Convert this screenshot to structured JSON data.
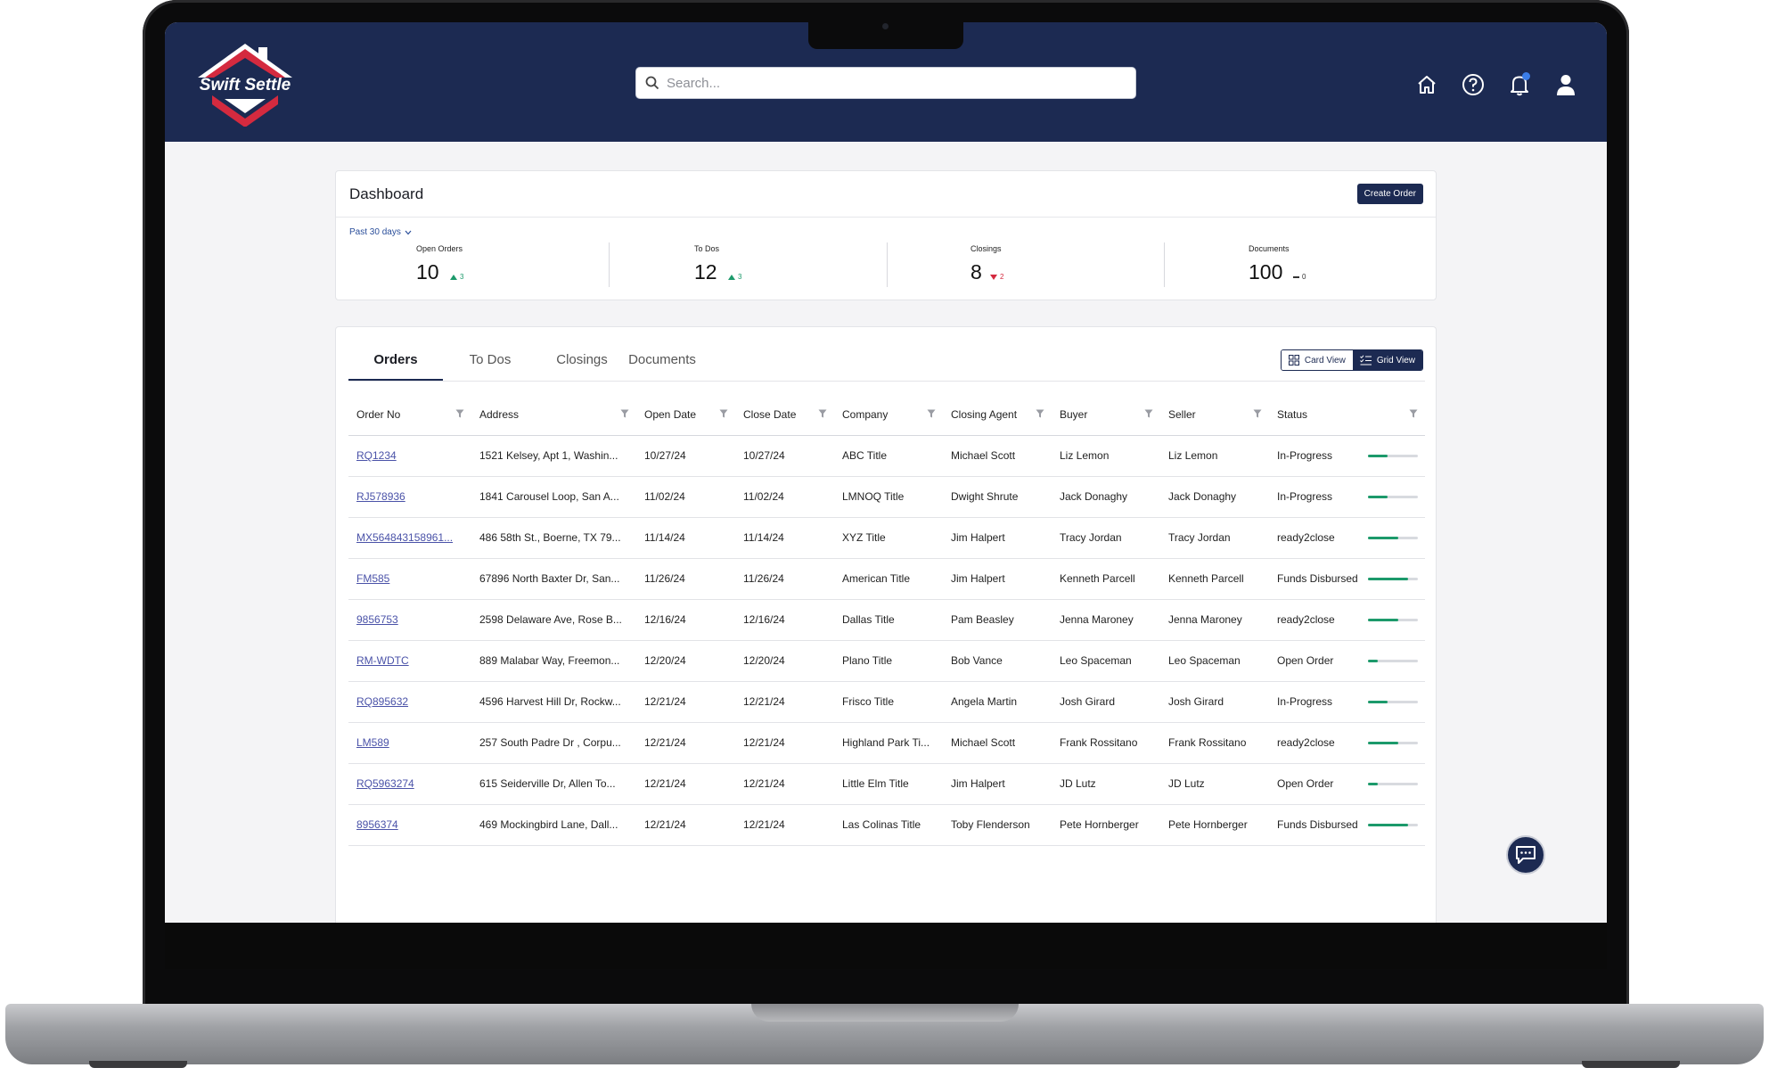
{
  "header": {
    "logo_text": "Swift Settle",
    "search_placeholder": "Search...",
    "icons": [
      "home-icon",
      "help-icon",
      "bell-icon",
      "user-icon"
    ]
  },
  "dashboard": {
    "title": "Dashboard",
    "create_label": "Create Order",
    "range_label": "Past 30 days",
    "stats": [
      {
        "label": "Open Orders",
        "value": "10",
        "delta": "3",
        "direction": "up"
      },
      {
        "label": "To Dos",
        "value": "12",
        "delta": "3",
        "direction": "up"
      },
      {
        "label": "Closings",
        "value": "8",
        "delta": "2",
        "direction": "down"
      },
      {
        "label": "Documents",
        "value": "100",
        "delta": "0",
        "direction": "flat"
      }
    ]
  },
  "tabs": [
    "Orders",
    "To Dos",
    "Closings",
    "Documents"
  ],
  "views": {
    "card": "Card View",
    "grid": "Grid View"
  },
  "table": {
    "columns": [
      "Order No",
      "Address",
      "Open Date",
      "Close Date",
      "Company",
      "Closing Agent",
      "Buyer",
      "Seller",
      "Status"
    ],
    "rows": [
      {
        "order": "RQ1234",
        "address": "1521 Kelsey, Apt 1, Washin...",
        "open": "10/27/24",
        "close": "10/27/24",
        "company": "ABC Title",
        "agent": "Michael Scott",
        "buyer": "Liz Lemon",
        "seller": "Liz Lemon",
        "status": "In-Progress",
        "progress": 0.4
      },
      {
        "order": "RJ578936",
        "address": "1841 Carousel Loop, San A...",
        "open": "11/02/24",
        "close": "11/02/24",
        "company": "LMNOQ Title",
        "agent": "Dwight Shrute",
        "buyer": "Jack Donaghy",
        "seller": "Jack Donaghy",
        "status": "In-Progress",
        "progress": 0.4
      },
      {
        "order": "MX564843158961...",
        "address": "486 58th St., Boerne, TX 79...",
        "open": "11/14/24",
        "close": "11/14/24",
        "company": "XYZ Title",
        "agent": "Jim Halpert",
        "buyer": "Tracy Jordan",
        "seller": "Tracy Jordan",
        "status": "ready2close",
        "progress": 0.6
      },
      {
        "order": "FM585",
        "address": "67896 North Baxter Dr, San...",
        "open": "11/26/24",
        "close": "11/26/24",
        "company": "American Title",
        "agent": "Jim Halpert",
        "buyer": "Kenneth Parcell",
        "seller": "Kenneth Parcell",
        "status": "Funds Disbursed",
        "progress": 0.8
      },
      {
        "order": "9856753",
        "address": "2598 Delaware Ave, Rose B...",
        "open": "12/16/24",
        "close": "12/16/24",
        "company": "Dallas Title",
        "agent": "Pam Beasley",
        "buyer": "Jenna Maroney",
        "seller": "Jenna Maroney",
        "status": "ready2close",
        "progress": 0.6
      },
      {
        "order": "RM-WDTC",
        "address": "889 Malabar Way, Freemon...",
        "open": "12/20/24",
        "close": "12/20/24",
        "company": "Plano Title",
        "agent": "Bob Vance",
        "buyer": "Leo Spaceman",
        "seller": "Leo Spaceman",
        "status": "Open Order",
        "progress": 0.2
      },
      {
        "order": "RQ895632",
        "address": "4596 Harvest Hill Dr, Rockw...",
        "open": "12/21/24",
        "close": "12/21/24",
        "company": "Frisco Title",
        "agent": "Angela Martin",
        "buyer": "Josh Girard",
        "seller": "Josh Girard",
        "status": "In-Progress",
        "progress": 0.4
      },
      {
        "order": "LM589",
        "address": "257 South Padre Dr , Corpu...",
        "open": "12/21/24",
        "close": "12/21/24",
        "company": "Highland Park Ti...",
        "agent": "Michael Scott",
        "buyer": "Frank Rossitano",
        "seller": "Frank Rossitano",
        "status": "ready2close",
        "progress": 0.6
      },
      {
        "order": "RQ5963274",
        "address": "615 Seiderville Dr, Allen To...",
        "open": "12/21/24",
        "close": "12/21/24",
        "company": "Little Elm Title",
        "agent": "Jim Halpert",
        "buyer": "JD Lutz",
        "seller": "JD Lutz",
        "status": "Open Order",
        "progress": 0.2
      },
      {
        "order": "8956374",
        "address": "469 Mockingbird Lane, Dall...",
        "open": "12/21/24",
        "close": "12/21/24",
        "company": "Las Colinas Title",
        "agent": "Toby Flenderson",
        "buyer": "Pete Hornberger",
        "seller": "Pete Hornberger",
        "status": "Funds Disbursed",
        "progress": 0.8
      }
    ]
  },
  "colors": {
    "navy": "#1c2a52",
    "accent_red": "#d42a3f",
    "progress": "#1c9a6b",
    "link": "#4a52a8",
    "up": "#1c9a6b",
    "down": "#d42a3f"
  }
}
